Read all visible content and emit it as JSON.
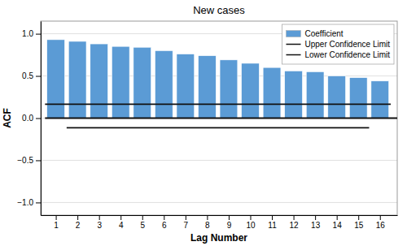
{
  "chart_data": {
    "type": "bar",
    "title": "New cases",
    "x_label": "Lag Number",
    "y_label": "ACF",
    "x": [
      1,
      2,
      3,
      4,
      5,
      6,
      7,
      8,
      9,
      10,
      11,
      12,
      13,
      14,
      15,
      16
    ],
    "series": [
      {
        "name": "Coefficient",
        "type": "bar",
        "color": "#5b9bd5",
        "values": [
          0.93,
          0.91,
          0.88,
          0.85,
          0.84,
          0.8,
          0.76,
          0.74,
          0.69,
          0.65,
          0.6,
          0.56,
          0.55,
          0.5,
          0.48,
          0.44
        ]
      },
      {
        "name": "Upper Confidence Limit",
        "type": "line",
        "color": "#111111",
        "x": [
          0.5,
          16.5
        ],
        "values": [
          0.165,
          0.165
        ]
      },
      {
        "name": "Lower Confidence Limit",
        "type": "line",
        "color": "#111111",
        "x": [
          1.5,
          15.5
        ],
        "values": [
          -0.115,
          -0.115
        ]
      },
      {
        "type": "line",
        "color": "#111111",
        "x": [
          0.5,
          16.8
        ],
        "values": [
          0.0,
          0.0
        ]
      }
    ],
    "xlim": [
      0.3,
      16.8
    ],
    "xticks": [
      1,
      2,
      3,
      4,
      5,
      6,
      7,
      8,
      9,
      10,
      11,
      12,
      13,
      14,
      15,
      16
    ],
    "ylim": [
      -1.15,
      1.15
    ],
    "yticks": [
      {
        "value": -1.0,
        "label": "−1.0"
      },
      {
        "value": -0.5,
        "label": "−0.5"
      },
      {
        "value": 0.0,
        "label": "0.0"
      },
      0.5,
      {
        "value": 1.0,
        "label": "1.0"
      }
    ],
    "grid": true,
    "legend": "upper right"
  }
}
